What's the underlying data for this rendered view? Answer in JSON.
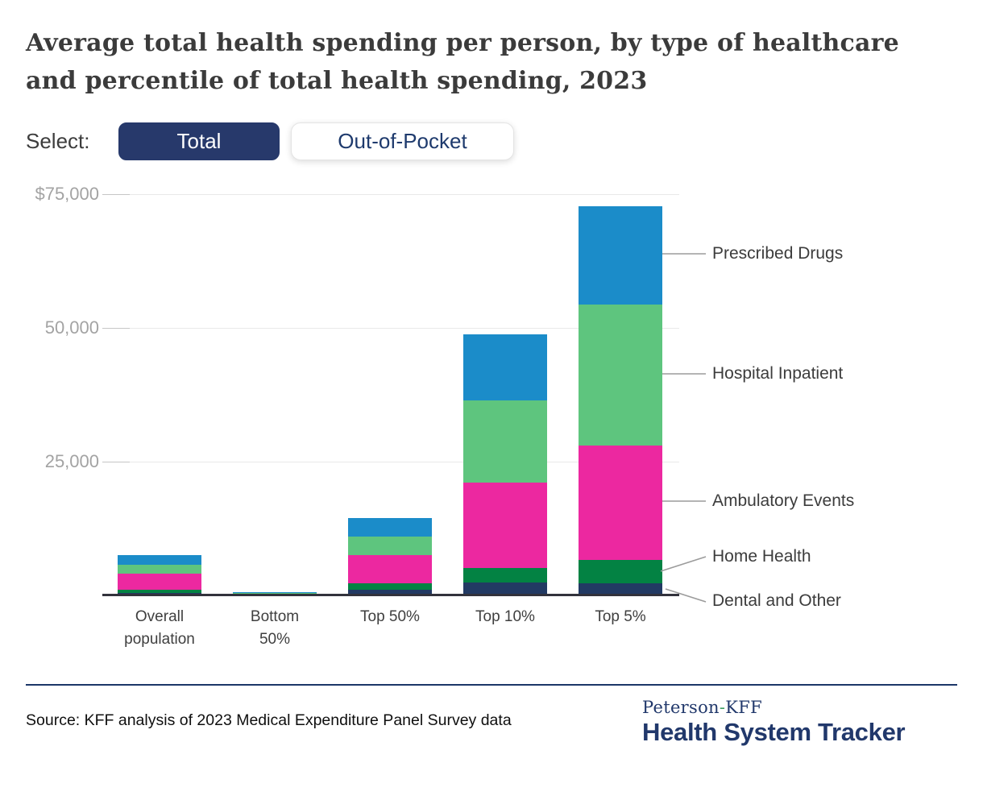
{
  "page": {
    "title_prefix": "Average ",
    "title_bold": "total",
    "title_suffix": " health spending per person, by type of healthcare and percentile of total health spending, 2023"
  },
  "select": {
    "label": "Select:",
    "buttons": [
      {
        "label": "Total",
        "active": true
      },
      {
        "label": "Out-of-Pocket",
        "active": false
      }
    ]
  },
  "chart_data": {
    "type": "bar",
    "stacked": true,
    "title": "Average total health spending per person, by type of healthcare and percentile of total health spending, 2023",
    "categories": [
      "Overall population",
      "Bottom 50%",
      "Top 50%",
      "Top 10%",
      "Top 5%"
    ],
    "series": [
      {
        "name": "Dental and Other",
        "color": "#223a63",
        "values": [
          500,
          60,
          1000,
          2350,
          2250
        ]
      },
      {
        "name": "Home Health",
        "color": "#038243",
        "values": [
          600,
          20,
          1200,
          2800,
          4450
        ]
      },
      {
        "name": "Ambulatory Events",
        "color": "#ec28a0",
        "values": [
          3000,
          350,
          5400,
          16000,
          21300
        ]
      },
      {
        "name": "Hospital Inpatient",
        "color": "#5ec57e",
        "values": [
          1650,
          40,
          3350,
          15300,
          26300
        ]
      },
      {
        "name": "Prescribed Drugs",
        "color": "#1b8cc9",
        "values": [
          1800,
          150,
          3450,
          12300,
          18400
        ]
      }
    ],
    "totals": [
      7550,
      620,
      14400,
      48750,
      72700
    ],
    "ylim": [
      0,
      75000
    ],
    "yticks": [
      {
        "value": 75000,
        "label": "$75,000"
      },
      {
        "value": 50000,
        "label": "50,000"
      },
      {
        "value": 25000,
        "label": "25,000"
      }
    ],
    "grid": true,
    "legend_position": "right"
  },
  "footer": {
    "source": "Source: KFF analysis of 2023 Medical Expenditure Panel Survey data",
    "logo_peterson": "Peterson",
    "logo_hyphen": "-",
    "logo_kff": "KFF",
    "logo_tracker": "Health System Tracker"
  },
  "colors": {
    "accent_navy": "#27396b",
    "button_text_navy": "#1e3a6d",
    "title_text": "#3b3b3b",
    "axis_label_gray": "#a3a3a3",
    "baseline_dark": "#32323c",
    "leader_line_gray": "#9b9b9b",
    "footer_rule_navy": "#1c3668",
    "logo_hyphen_green": "#3f9e63"
  }
}
